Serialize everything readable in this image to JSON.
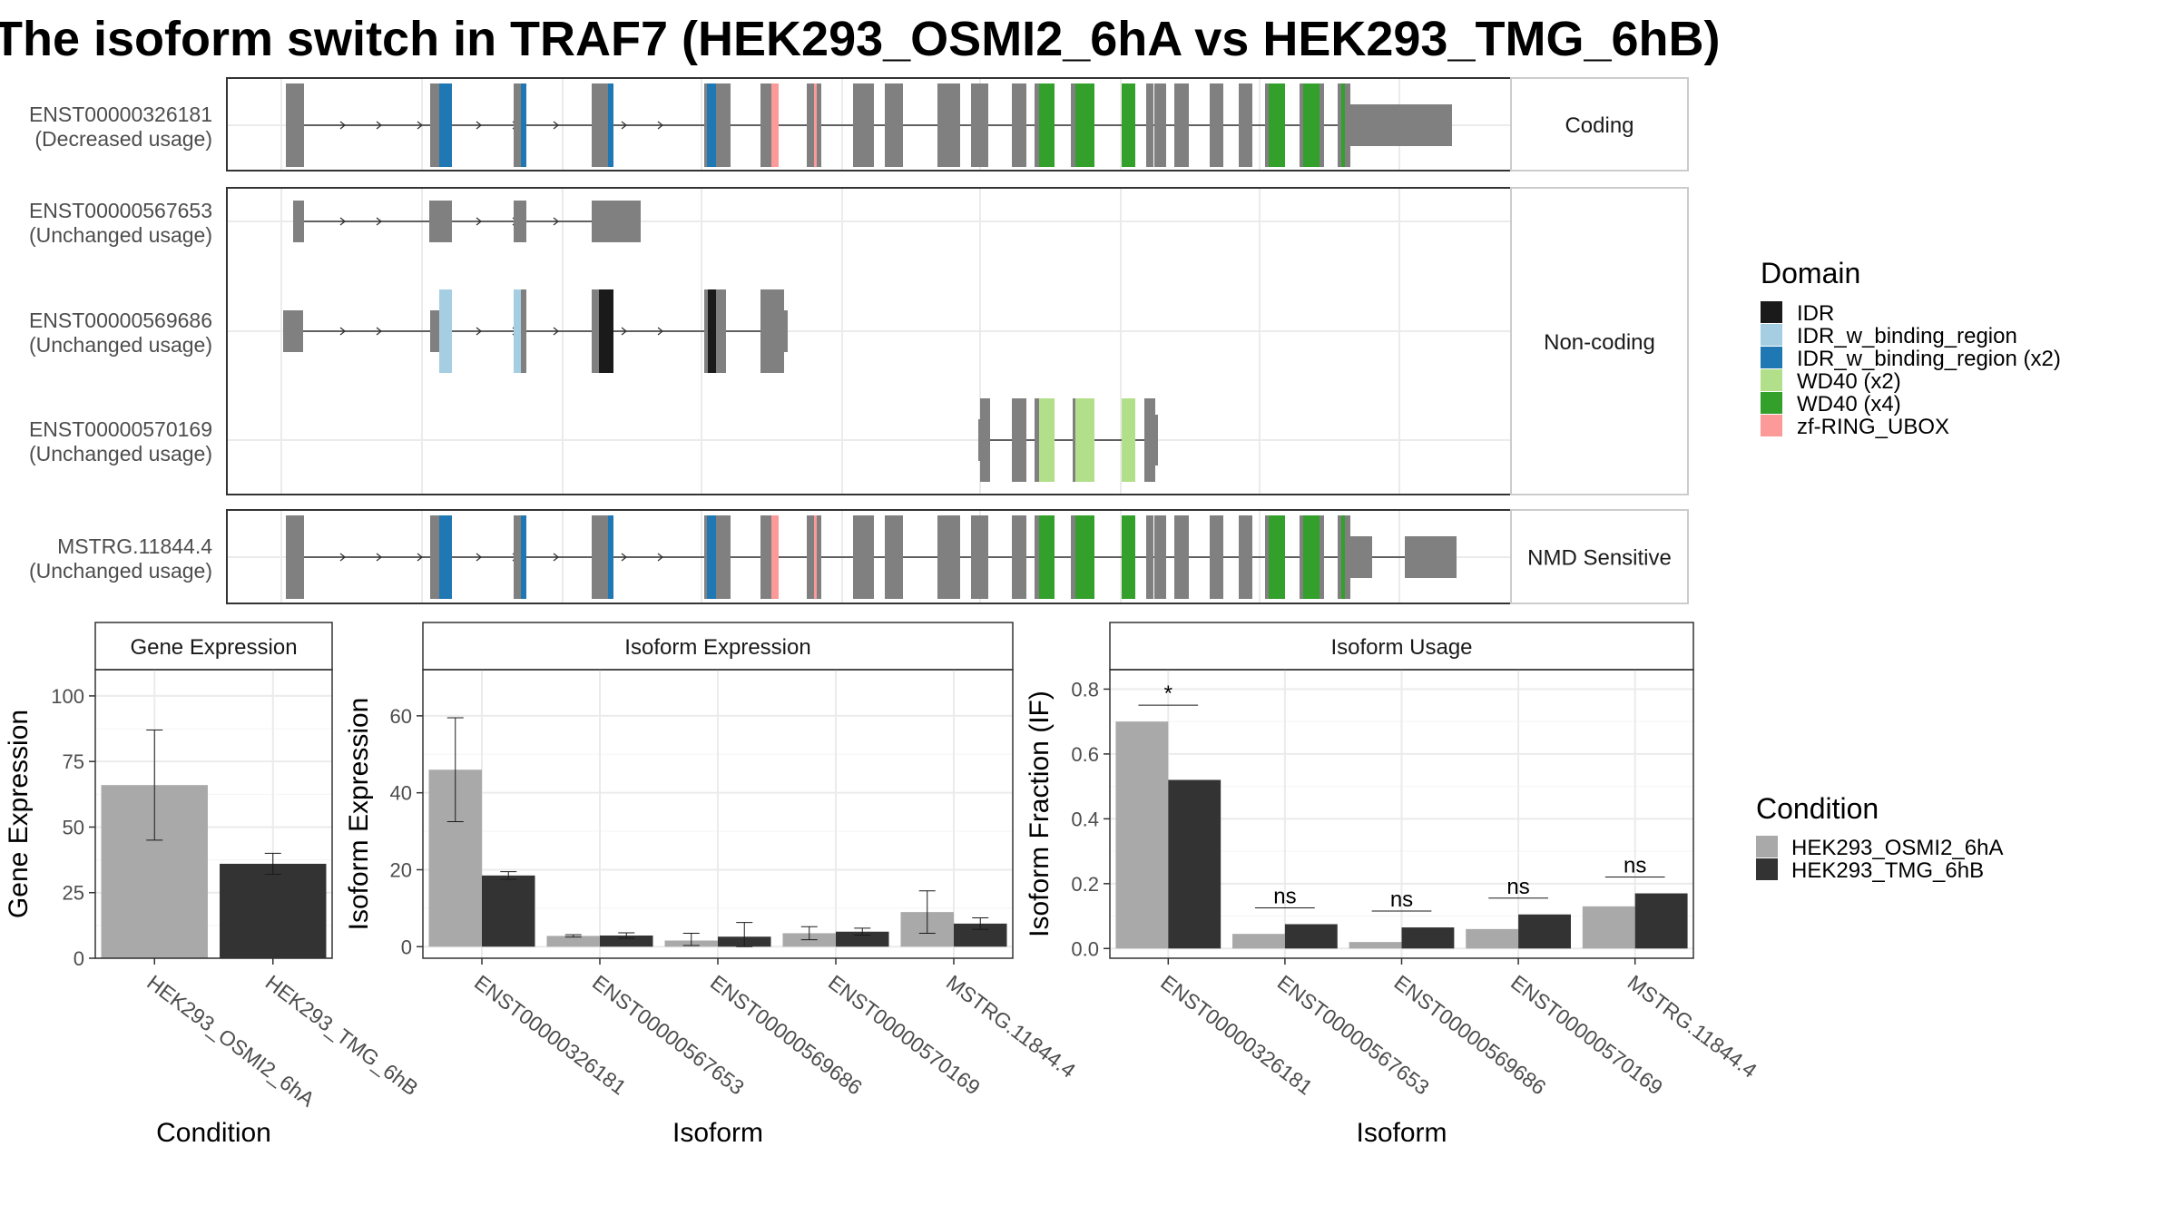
{
  "title": "The isoform switch in TRAF7 (HEK293_OSMI2_6hA vs HEK293_TMG_6hB)",
  "colors": {
    "exon": "#808080",
    "IDR": "#1a1a1a",
    "IDR_w_binding_region": "#a6cee3",
    "IDR_w_binding_region (x2)": "#1f78b4",
    "WD40 (x2)": "#b2df8a",
    "WD40 (x4)": "#33a02c",
    "zf-RING_UBOX": "#fb9a99",
    "condA": "#a9a9a9",
    "condB": "#333333"
  },
  "structure": {
    "facets": [
      "Coding",
      "Non-coding",
      "NMD Sensitive"
    ],
    "isoforms": [
      {
        "id": "ENST00000326181",
        "usage": "(Decreased usage)",
        "facet": "Coding"
      },
      {
        "id": "ENST00000567653",
        "usage": "(Unchanged usage)",
        "facet": "Non-coding"
      },
      {
        "id": "ENST00000569686",
        "usage": "(Unchanged usage)",
        "facet": "Non-coding"
      },
      {
        "id": "ENST00000570169",
        "usage": "(Unchanged usage)",
        "facet": "Non-coding"
      },
      {
        "id": "MSTRG.11844.4",
        "usage": "(Unchanged usage)",
        "facet": "NMD Sensitive"
      }
    ],
    "legend_title": "Domain",
    "legend": [
      "IDR",
      "IDR_w_binding_region",
      "IDR_w_binding_region (x2)",
      "WD40 (x2)",
      "WD40 (x4)",
      "zf-RING_UBOX"
    ]
  },
  "chart_data": [
    {
      "type": "bar",
      "title": "Gene Expression",
      "xlabel": "Condition",
      "ylabel": "Gene Expression",
      "categories": [
        "HEK293_OSMI2_6hA",
        "HEK293_TMG_6hB"
      ],
      "values": [
        66,
        36
      ],
      "errors": [
        [
          45,
          87
        ],
        [
          32,
          40
        ]
      ],
      "ylim": [
        0,
        110
      ],
      "yticks": [
        0,
        25,
        50,
        75,
        100
      ]
    },
    {
      "type": "bar",
      "title": "Isoform Expression",
      "xlabel": "Isoform",
      "ylabel": "Isoform Expression",
      "categories": [
        "ENST00000326181",
        "ENST00000567653",
        "ENST00000569686",
        "ENST00000570169",
        "MSTRG.11844.4"
      ],
      "series": [
        {
          "name": "HEK293_OSMI2_6hA",
          "values": [
            46,
            2.8,
            1.6,
            3.5,
            9
          ],
          "errors": [
            [
              32.5,
              59.5
            ],
            [
              2.5,
              3.1
            ],
            [
              0.3,
              3.5
            ],
            [
              1.8,
              5.2
            ],
            [
              3.5,
              14.5
            ]
          ]
        },
        {
          "name": "HEK293_TMG_6hB",
          "values": [
            18.5,
            2.9,
            2.6,
            3.9,
            6
          ],
          "errors": [
            [
              17.5,
              19.5
            ],
            [
              2.2,
              3.6
            ],
            [
              0,
              6.3
            ],
            [
              3,
              4.8
            ],
            [
              4.5,
              7.5
            ]
          ]
        }
      ],
      "ylim": [
        -3,
        72
      ],
      "yticks": [
        0,
        20,
        40,
        60
      ]
    },
    {
      "type": "bar",
      "title": "Isoform Usage",
      "xlabel": "Isoform",
      "ylabel": "Isoform Fraction (IF)",
      "categories": [
        "ENST00000326181",
        "ENST00000567653",
        "ENST00000569686",
        "ENST00000570169",
        "MSTRG.11844.4"
      ],
      "series": [
        {
          "name": "HEK293_OSMI2_6hA",
          "values": [
            0.7,
            0.045,
            0.02,
            0.06,
            0.13
          ]
        },
        {
          "name": "HEK293_TMG_6hB",
          "values": [
            0.52,
            0.075,
            0.065,
            0.105,
            0.17
          ]
        }
      ],
      "significance": [
        "*",
        "ns",
        "ns",
        "ns",
        "ns"
      ],
      "ylim": [
        -0.03,
        0.86
      ],
      "yticks": [
        "0.0",
        "0.2",
        "0.4",
        "0.6",
        "0.8"
      ]
    }
  ],
  "condition_legend": {
    "title": "Condition",
    "items": [
      "HEK293_OSMI2_6hA",
      "HEK293_TMG_6hB"
    ]
  }
}
